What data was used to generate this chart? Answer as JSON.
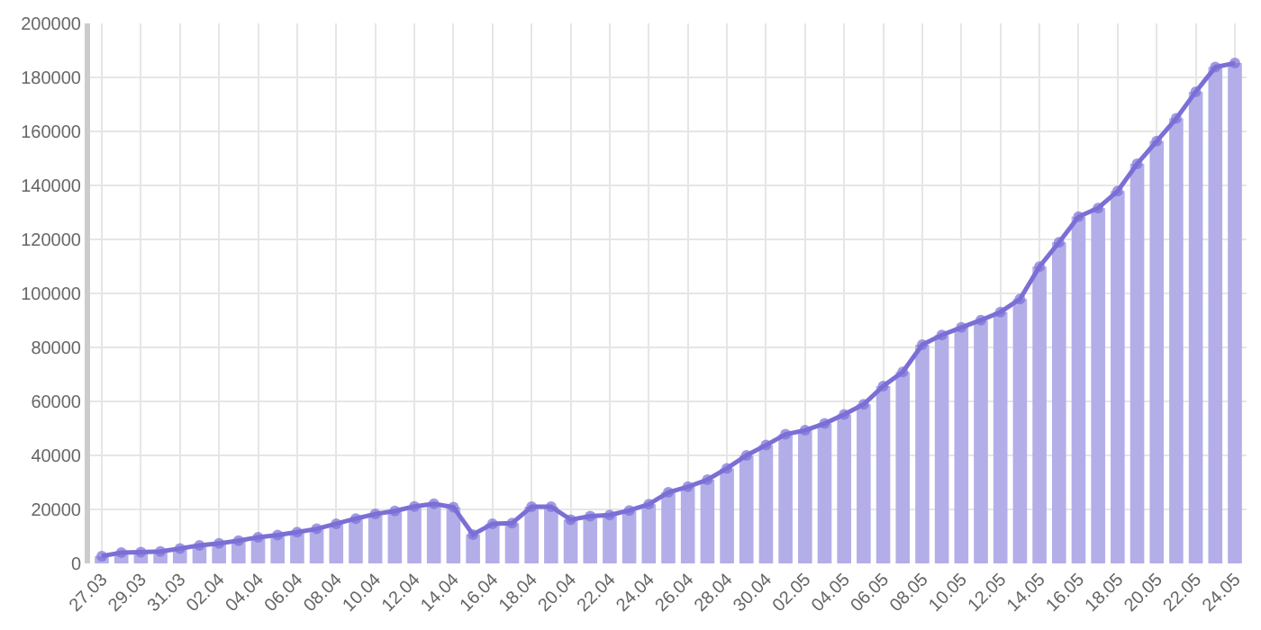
{
  "chart_data": {
    "type": "bar",
    "categories": [
      "27.03",
      null,
      "29.03",
      null,
      "31.03",
      null,
      "02.04",
      null,
      "04.04",
      null,
      "06.04",
      null,
      "08.04",
      null,
      "10.04",
      null,
      "12.04",
      null,
      "14.04",
      null,
      "16.04",
      null,
      "18.04",
      null,
      "20.04",
      null,
      "22.04",
      null,
      "24.04",
      null,
      "26.04",
      null,
      "28.04",
      null,
      "30.04",
      null,
      "02.05",
      null,
      "04.05",
      null,
      "06.05",
      null,
      "08.05",
      null,
      "10.05",
      null,
      "12.05",
      null,
      "14.05",
      null,
      "16.05",
      null,
      "18.05",
      null,
      "20.05",
      null,
      "22.05",
      null,
      "24.05"
    ],
    "series": [
      {
        "color": "#b3aee8",
        "values": [
          2700,
          4000,
          4200,
          4400,
          5500,
          6700,
          7400,
          8400,
          9700,
          10500,
          11600,
          12800,
          14700,
          16600,
          18300,
          19400,
          21100,
          22100,
          20800,
          10700,
          14700,
          14900,
          21000,
          21000,
          16200,
          17500,
          17900,
          19600,
          21900,
          26300,
          28400,
          31000,
          35200,
          40000,
          43800,
          47800,
          49300,
          51800,
          55200,
          58900,
          65700,
          70900,
          81000,
          84600,
          87400,
          90100,
          93100,
          97900,
          109900,
          118900,
          128400,
          131600,
          137900,
          148000,
          156400,
          164800,
          174700,
          183800,
          185300
        ]
      },
      {
        "type": "line",
        "color": "#7b6fd6",
        "values": [
          2700,
          4000,
          4200,
          4400,
          5500,
          6700,
          7400,
          8400,
          9700,
          10500,
          11600,
          12800,
          14700,
          16600,
          18300,
          19400,
          21100,
          22100,
          20800,
          10700,
          14700,
          14900,
          21000,
          21000,
          16200,
          17500,
          17900,
          19600,
          21900,
          26300,
          28400,
          31000,
          35200,
          40000,
          43800,
          47800,
          49300,
          51800,
          55200,
          58900,
          65700,
          70900,
          81000,
          84600,
          87400,
          90100,
          93100,
          97900,
          109900,
          118900,
          128400,
          131600,
          137900,
          148000,
          156400,
          164800,
          174700,
          183800,
          185300
        ]
      }
    ],
    "ylim": [
      0,
      200000
    ],
    "yticks": [
      0,
      20000,
      40000,
      60000,
      80000,
      100000,
      120000,
      140000,
      160000,
      180000,
      200000
    ],
    "grid": true,
    "marker": "circle",
    "line_style": "solid"
  }
}
